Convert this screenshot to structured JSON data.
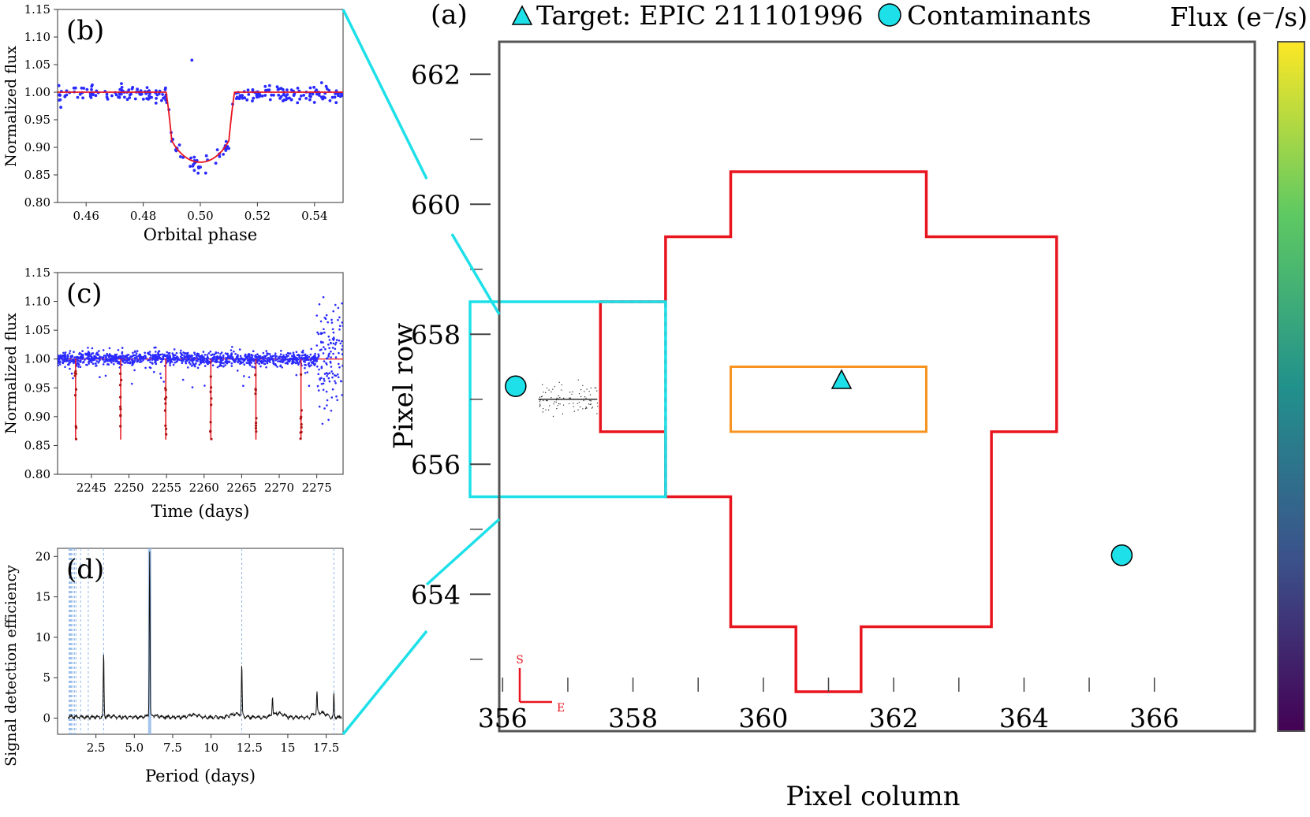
{
  "chart_data": [
    {
      "id": "a",
      "type": "heatmap",
      "panel_label": "(a)",
      "legend": [
        {
          "label": "Target: EPIC 211101996",
          "marker": "triangle",
          "color": "#1ee0e8"
        },
        {
          "label": "Contaminants",
          "marker": "circle",
          "color": "#1ee0e8"
        }
      ],
      "colorbar_label": "Flux (e⁻/s)",
      "xlabel": "Pixel column",
      "ylabel": "Pixel row",
      "x_ticks": [
        "356",
        "358",
        "360",
        "362",
        "364",
        "366"
      ],
      "y_ticks": [
        "662",
        "660",
        "658",
        "656",
        "654"
      ],
      "compass": {
        "north": "S",
        "east": "E"
      },
      "columns": [
        356,
        357,
        358,
        359,
        360,
        361,
        362,
        363,
        364,
        365,
        366
      ],
      "rows": [
        662,
        661,
        660,
        659,
        658,
        657,
        656,
        655,
        654,
        653
      ],
      "target": {
        "col": 361.2,
        "row": 657.3
      },
      "contaminants": [
        {
          "col": 356.2,
          "row": 657.2
        },
        {
          "col": 365.5,
          "row": 654.6
        }
      ]
    },
    {
      "id": "b",
      "type": "scatter",
      "panel_label": "(b)",
      "xlabel": "Orbital phase",
      "ylabel": "Normalized flux",
      "xlim": [
        0.45,
        0.55
      ],
      "ylim": [
        0.8,
        1.15
      ],
      "x_ticks": [
        "0.46",
        "0.48",
        "0.50",
        "0.52",
        "0.54"
      ],
      "y_ticks": [
        "0.80",
        "0.85",
        "0.90",
        "0.95",
        "1.00",
        "1.05",
        "1.10",
        "1.15"
      ],
      "model": {
        "depth": 0.873,
        "ingress_start": 0.488,
        "egress_end": 0.512
      }
    },
    {
      "id": "c",
      "type": "scatter",
      "panel_label": "(c)",
      "xlabel": "Time (days)",
      "ylabel": "Normalized flux",
      "xlim": [
        2240.5,
        2278.5
      ],
      "ylim": [
        0.8,
        1.15
      ],
      "x_ticks": [
        "2245",
        "2250",
        "2255",
        "2260",
        "2265",
        "2270",
        "2275"
      ],
      "y_ticks": [
        "0.80",
        "0.85",
        "0.90",
        "0.95",
        "1.00",
        "1.05",
        "1.10",
        "1.15"
      ],
      "transit_times": [
        2242.9,
        2248.9,
        2254.9,
        2260.9,
        2266.9,
        2272.9
      ]
    },
    {
      "id": "d",
      "type": "line",
      "panel_label": "(d)",
      "xlabel": "Period (days)",
      "ylabel": "Signal detection efficiency",
      "xlim": [
        0,
        18.6
      ],
      "ylim": [
        -2,
        21
      ],
      "x_ticks": [
        "2.5",
        "5.0",
        "7.5",
        "10",
        "12.5",
        "15",
        "17.5"
      ],
      "y_ticks": [
        "0",
        "5",
        "10",
        "15",
        "20"
      ],
      "peaks": [
        {
          "period": 6.0,
          "sde": 20.3
        },
        {
          "period": 3.0,
          "sde": 7.9
        },
        {
          "period": 12.0,
          "sde": 6.2
        },
        {
          "period": 18.0,
          "sde": 2.9
        },
        {
          "period": 16.9,
          "sde": 2.6
        },
        {
          "period": 14.0,
          "sde": 2.3
        }
      ]
    }
  ]
}
